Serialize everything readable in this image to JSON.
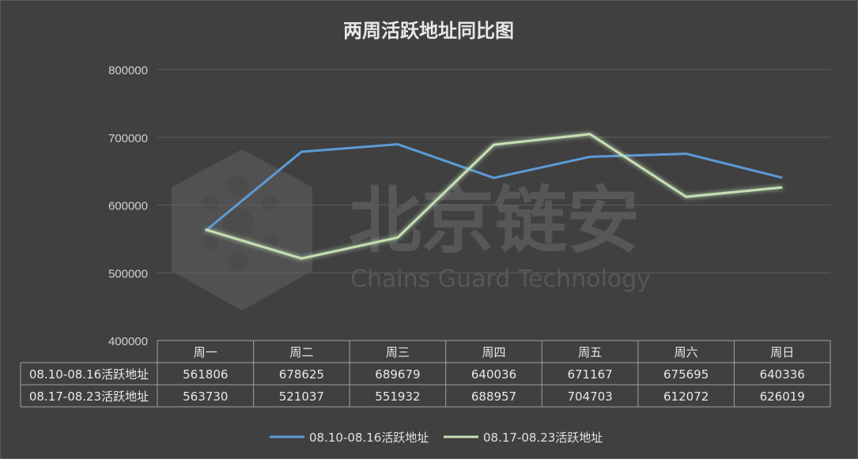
{
  "watermark": {
    "cn": "北京链安",
    "en": "Chains Guard Technology"
  },
  "chart_data": {
    "type": "line",
    "title": "两周活跃地址同比图",
    "categories": [
      "周一",
      "周二",
      "周三",
      "周四",
      "周五",
      "周六",
      "周日"
    ],
    "ylim": [
      400000,
      800000
    ],
    "yticks": [
      400000,
      500000,
      600000,
      700000,
      800000
    ],
    "grid": true,
    "legend_position": "bottom",
    "series": [
      {
        "name": "08.10-08.16活跃地址",
        "color": "#5b9bd5",
        "values": [
          561806,
          678625,
          689679,
          640036,
          671167,
          675695,
          640336
        ]
      },
      {
        "name": "08.17-08.23活跃地址",
        "color": "#c5e0b4",
        "values": [
          563730,
          521037,
          551932,
          688957,
          704703,
          612072,
          626019
        ]
      }
    ]
  }
}
